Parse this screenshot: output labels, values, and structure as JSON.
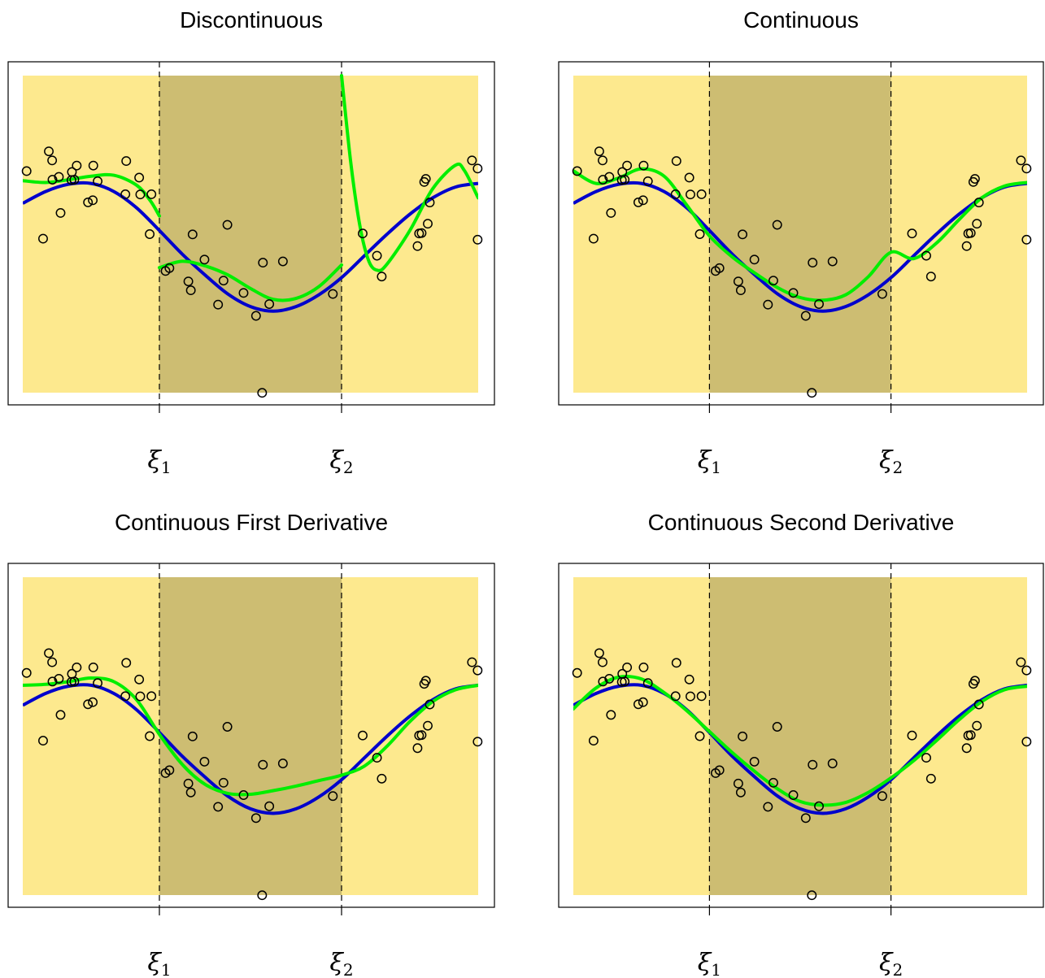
{
  "chart_data": {
    "type": "scatter",
    "layout": "2x2 panels",
    "colors": {
      "outer_band": "#FDE98E",
      "middle_band": "#CDBD72",
      "true_curve": "#0000CC",
      "fitted_curve": "#00EE00",
      "points": "#000000",
      "knot_lines": "#000000"
    },
    "xlim": [
      0,
      1
    ],
    "ylim": [
      -1.75,
      1.75
    ],
    "knots": [
      {
        "label": "ξ",
        "sub": "1",
        "x": 0.3
      },
      {
        "label": "ξ",
        "sub": "2",
        "x": 0.7
      }
    ],
    "grid": false,
    "legend": "none",
    "points": [
      {
        "x": 0.0084,
        "y": 0.696
      },
      {
        "x": 0.0446,
        "y": -0.05
      },
      {
        "x": 0.0572,
        "y": 0.914
      },
      {
        "x": 0.0645,
        "y": 0.814
      },
      {
        "x": 0.0652,
        "y": 0.601
      },
      {
        "x": 0.0793,
        "y": 0.632
      },
      {
        "x": 0.083,
        "y": 0.234
      },
      {
        "x": 0.1069,
        "y": 0.597
      },
      {
        "x": 0.1079,
        "y": 0.686
      },
      {
        "x": 0.1132,
        "y": 0.601
      },
      {
        "x": 0.1185,
        "y": 0.757
      },
      {
        "x": 0.1432,
        "y": 0.351
      },
      {
        "x": 0.1537,
        "y": 0.374
      },
      {
        "x": 0.1549,
        "y": 0.757
      },
      {
        "x": 0.1644,
        "y": 0.584
      },
      {
        "x": 0.2272,
        "y": 0.807
      },
      {
        "x": 0.2253,
        "y": 0.44
      },
      {
        "x": 0.2556,
        "y": 0.624
      },
      {
        "x": 0.258,
        "y": 0.438
      },
      {
        "x": 0.2825,
        "y": 0.44
      },
      {
        "x": 0.2787,
        "y": 0.0
      },
      {
        "x": 0.3135,
        "y": -0.407
      },
      {
        "x": 0.322,
        "y": -0.375
      },
      {
        "x": 0.3636,
        "y": -0.522
      },
      {
        "x": 0.369,
        "y": -0.62
      },
      {
        "x": 0.3729,
        "y": -0.003
      },
      {
        "x": 0.399,
        "y": -0.281
      },
      {
        "x": 0.4289,
        "y": -0.778
      },
      {
        "x": 0.4408,
        "y": -0.513
      },
      {
        "x": 0.4493,
        "y": 0.103
      },
      {
        "x": 0.4848,
        "y": -0.649
      },
      {
        "x": 0.5122,
        "y": -0.902
      },
      {
        "x": 0.5256,
        "y": -1.752
      },
      {
        "x": 0.5273,
        "y": -0.315
      },
      {
        "x": 0.5413,
        "y": -0.772
      },
      {
        "x": 0.5712,
        "y": -0.301
      },
      {
        "x": 0.6809,
        "y": -0.66
      },
      {
        "x": 0.7464,
        "y": 0.007
      },
      {
        "x": 0.7778,
        "y": -0.238
      },
      {
        "x": 0.7882,
        "y": -0.468
      },
      {
        "x": 0.8668,
        "y": -0.132
      },
      {
        "x": 0.8703,
        "y": 0.007
      },
      {
        "x": 0.8758,
        "y": 0.012
      },
      {
        "x": 0.8815,
        "y": 0.576
      },
      {
        "x": 0.8851,
        "y": 0.61
      },
      {
        "x": 0.8893,
        "y": 0.115
      },
      {
        "x": 0.8937,
        "y": 0.349
      },
      {
        "x": 0.9864,
        "y": 0.814
      },
      {
        "x": 0.9988,
        "y": 0.724
      },
      {
        "x": 0.9988,
        "y": -0.061
      }
    ],
    "true_curve": {
      "x": [
        0,
        0.05,
        0.1,
        0.15,
        0.2,
        0.25,
        0.3,
        0.35,
        0.4,
        0.45,
        0.5,
        0.55,
        0.6,
        0.65,
        0.7,
        0.75,
        0.8,
        0.85,
        0.9,
        0.95,
        1
      ],
      "y": [
        0.34,
        0.47,
        0.55,
        0.56,
        0.47,
        0.29,
        0.04,
        -0.22,
        -0.45,
        -0.66,
        -0.8,
        -0.85,
        -0.8,
        -0.67,
        -0.48,
        -0.24,
        0.0,
        0.22,
        0.4,
        0.52,
        0.56
      ]
    },
    "panels": [
      {
        "title": "Discontinuous",
        "fits": [
          {
            "x": [
              0,
              0.05,
              0.1,
              0.15,
              0.2,
              0.25,
              0.28,
              0.3
            ],
            "y": [
              0.59,
              0.57,
              0.6,
              0.64,
              0.65,
              0.54,
              0.37,
              0.2
            ]
          },
          {
            "x": [
              0.3,
              0.35,
              0.4,
              0.45,
              0.5,
              0.55,
              0.6,
              0.65,
              0.7
            ],
            "y": [
              -0.37,
              -0.3,
              -0.35,
              -0.45,
              -0.6,
              -0.72,
              -0.71,
              -0.58,
              -0.34
            ]
          },
          {
            "x": [
              0.7,
              0.72,
              0.74,
              0.76,
              0.78,
              0.8,
              0.85,
              0.9,
              0.95,
              0.97,
              1
            ],
            "y": [
              1.75,
              0.8,
              0.1,
              -0.3,
              -0.4,
              -0.33,
              0.04,
              0.5,
              0.76,
              0.7,
              0.4
            ]
          }
        ]
      },
      {
        "title": "Continuous",
        "fits": [
          {
            "x": [
              0,
              0.05,
              0.1,
              0.15,
              0.2,
              0.25,
              0.3,
              0.35,
              0.4,
              0.45,
              0.5,
              0.55,
              0.6,
              0.65,
              0.7,
              0.75,
              0.8,
              0.85,
              0.9,
              0.95,
              1
            ],
            "y": [
              0.7,
              0.56,
              0.62,
              0.72,
              0.64,
              0.32,
              -0.02,
              -0.25,
              -0.43,
              -0.59,
              -0.7,
              -0.73,
              -0.67,
              -0.47,
              -0.2,
              -0.27,
              -0.1,
              0.16,
              0.4,
              0.53,
              0.57
            ]
          }
        ]
      },
      {
        "title": "Continuous First Derivative",
        "fits": [
          {
            "x": [
              0,
              0.05,
              0.1,
              0.15,
              0.2,
              0.25,
              0.3,
              0.35,
              0.4,
              0.45,
              0.5,
              0.55,
              0.6,
              0.65,
              0.7,
              0.75,
              0.8,
              0.85,
              0.9,
              0.95,
              1
            ],
            "y": [
              0.56,
              0.57,
              0.6,
              0.64,
              0.6,
              0.4,
              0.02,
              -0.31,
              -0.53,
              -0.63,
              -0.64,
              -0.6,
              -0.55,
              -0.49,
              -0.43,
              -0.33,
              -0.11,
              0.16,
              0.38,
              0.51,
              0.56
            ]
          }
        ]
      },
      {
        "title": "Continuous Second Derivative",
        "fits": [
          {
            "x": [
              0,
              0.05,
              0.1,
              0.15,
              0.2,
              0.25,
              0.3,
              0.35,
              0.4,
              0.45,
              0.5,
              0.55,
              0.6,
              0.65,
              0.7,
              0.75,
              0.8,
              0.85,
              0.9,
              0.95,
              1
            ],
            "y": [
              0.3,
              0.53,
              0.65,
              0.63,
              0.48,
              0.28,
              0.05,
              -0.18,
              -0.39,
              -0.58,
              -0.72,
              -0.76,
              -0.73,
              -0.62,
              -0.46,
              -0.27,
              -0.05,
              0.18,
              0.38,
              0.51,
              0.55
            ]
          }
        ]
      }
    ]
  }
}
